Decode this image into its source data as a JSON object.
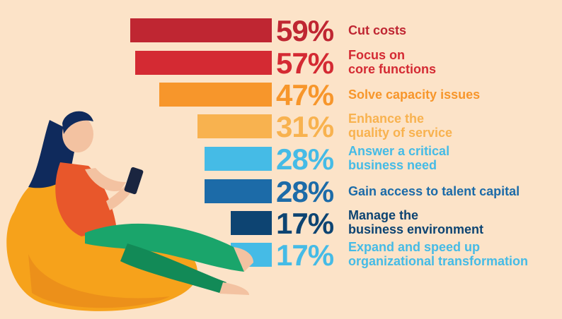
{
  "chart_data": {
    "type": "bar",
    "orientation": "horizontal",
    "title": "",
    "xlabel": "",
    "ylabel": "",
    "xlim": [
      0,
      100
    ],
    "categories": [
      "Cut costs",
      "Focus on\ncore functions",
      "Solve capacity issues",
      "Enhance the\nquality of service",
      "Answer a critical\nbusiness need",
      "Gain access to talent capital",
      "Manage the\nbusiness environment",
      "Expand and speed up\norganizational transformation"
    ],
    "values": [
      59,
      57,
      47,
      31,
      28,
      28,
      17,
      17
    ],
    "value_labels": [
      "59%",
      "57%",
      "47%",
      "31%",
      "28%",
      "28%",
      "17%",
      "17%"
    ],
    "colors": [
      "#bf2632",
      "#d42a33",
      "#f7962b",
      "#f8b24f",
      "#45bbe6",
      "#1c6ba8",
      "#0d4472",
      "#45bbe6"
    ],
    "text_colors": [
      "#bf2632",
      "#d42a33",
      "#f7962b",
      "#f8b24f",
      "#45bbe6",
      "#1c6ba8",
      "#0d4472",
      "#45bbe6"
    ],
    "legend": "none",
    "grid": false
  },
  "illustration": {
    "description_icon": "woman-on-beanbag-with-phone-icon"
  }
}
